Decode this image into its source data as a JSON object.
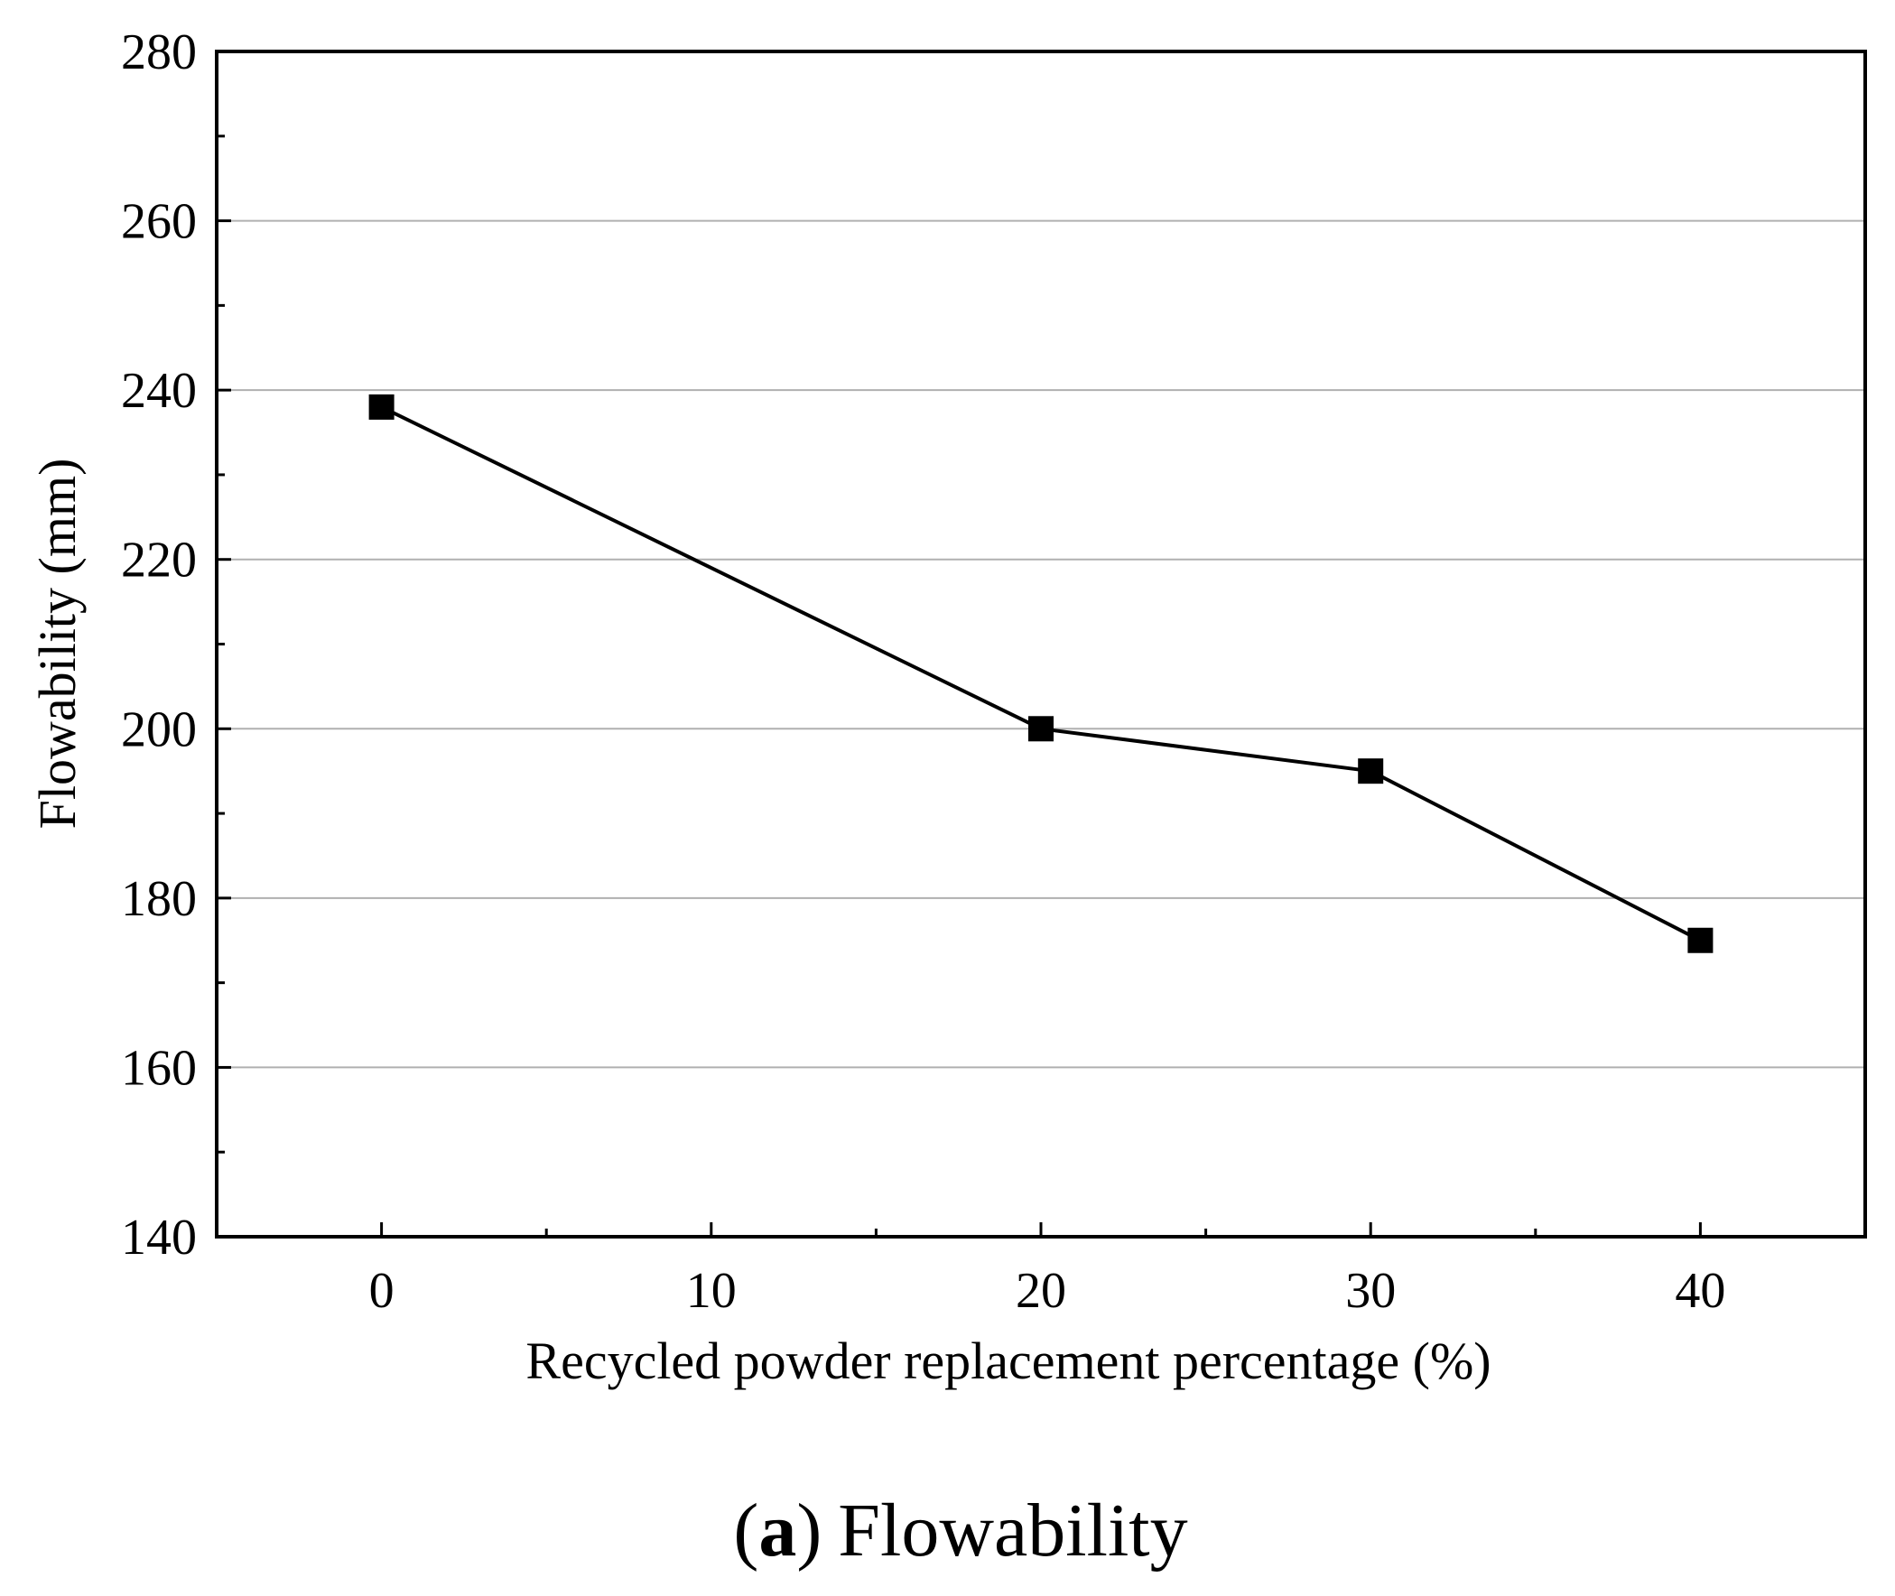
{
  "chart_data": {
    "type": "line",
    "x": [
      0,
      20,
      30,
      40
    ],
    "series": [
      {
        "name": "Flowability",
        "values": [
          238,
          200,
          195,
          175
        ],
        "marker": "square",
        "color": "#000000"
      }
    ],
    "xlabel": "Recycled powder replacement percentage (%)",
    "ylabel": "Flowability (mm)",
    "xlim": [
      -5,
      45
    ],
    "ylim": [
      140,
      280
    ],
    "x_ticks": [
      0,
      10,
      20,
      30,
      40
    ],
    "y_ticks": [
      140,
      160,
      180,
      200,
      220,
      240,
      260,
      280
    ],
    "grid": "horizontal"
  },
  "caption": {
    "paren_open": "(",
    "letter": "a",
    "paren_close": ")",
    "text": "Flowability"
  },
  "colors": {
    "line": "#000000",
    "grid": "#b0b0b0",
    "axis": "#000000"
  }
}
